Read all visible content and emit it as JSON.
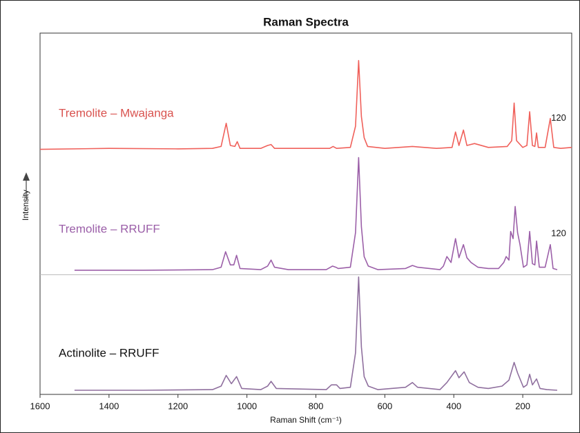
{
  "chart_data": [
    {
      "type": "line",
      "title": "Raman Spectra",
      "xlim": [
        1600,
        58
      ],
      "ylim": [
        0,
        100
      ],
      "x": [
        1600,
        1400,
        1200,
        1100,
        1075,
        1060,
        1048,
        1035,
        1028,
        1020,
        960,
        940,
        930,
        920,
        760,
        750,
        740,
        700,
        685,
        676,
        668,
        660,
        650,
        600,
        520,
        450,
        405,
        395,
        385,
        372,
        362,
        340,
        300,
        245,
        232,
        225,
        218,
        200,
        188,
        180,
        172,
        165,
        160,
        155,
        135,
        120,
        110,
        90,
        58
      ],
      "series": [
        {
          "name": "Tremolite – Mwajanga",
          "color": "#f0605a",
          "label_color": "#d9534f",
          "values": [
            6,
            7,
            6.5,
            7,
            9,
            33,
            10,
            9,
            14,
            7,
            7,
            10,
            11,
            7,
            7,
            9,
            7,
            8,
            30,
            98,
            40,
            18,
            9,
            7,
            9,
            7,
            8,
            24,
            10,
            26,
            10,
            12,
            8,
            9,
            15,
            54,
            15,
            8,
            10,
            45,
            10,
            9,
            23,
            8,
            8,
            38,
            8,
            7,
            8
          ]
        }
      ],
      "annotations": [
        {
          "text": "120",
          "x": 120
        }
      ]
    },
    {
      "type": "line",
      "ylabel": "Intensity",
      "xlim": [
        1600,
        58
      ],
      "ylim": [
        0,
        100
      ],
      "x": [
        1500,
        1300,
        1100,
        1075,
        1062,
        1048,
        1038,
        1030,
        1020,
        960,
        940,
        930,
        920,
        880,
        770,
        752,
        742,
        735,
        700,
        685,
        676,
        668,
        660,
        648,
        620,
        540,
        520,
        505,
        440,
        430,
        420,
        408,
        395,
        385,
        372,
        362,
        350,
        330,
        300,
        270,
        255,
        248,
        240,
        235,
        228,
        222,
        215,
        208,
        198,
        188,
        180,
        172,
        165,
        160,
        152,
        135,
        120,
        112,
        100
      ],
      "series": [
        {
          "name": "Tremolite – RRUFF",
          "color": "#9b5fa8",
          "label_color": "#9b5fa8",
          "values": [
            3.5,
            3.5,
            4,
            6,
            19,
            8,
            8,
            16,
            5,
            4,
            7,
            12,
            6,
            4,
            4,
            7,
            6,
            5,
            6,
            35,
            98,
            40,
            15,
            7,
            4,
            5,
            7.5,
            6,
            4,
            7,
            15,
            10,
            30,
            14,
            25,
            14,
            10,
            6,
            5,
            5,
            10,
            15,
            12,
            36,
            30,
            57,
            35,
            25,
            6,
            8,
            36,
            9,
            8,
            28,
            6,
            6,
            25,
            5,
            4
          ]
        }
      ],
      "annotations": [
        {
          "text": "120",
          "x": 120
        }
      ]
    },
    {
      "type": "line",
      "xlabel": "Raman Shift (cm⁻¹)",
      "xlim": [
        1600,
        58
      ],
      "ylim": [
        0,
        100
      ],
      "xticks": [
        1600,
        1400,
        1200,
        1000,
        800,
        600,
        400,
        200
      ],
      "x": [
        1500,
        1300,
        1100,
        1075,
        1060,
        1045,
        1030,
        1015,
        960,
        940,
        930,
        915,
        770,
        755,
        740,
        730,
        700,
        685,
        676,
        668,
        660,
        648,
        620,
        540,
        520,
        505,
        440,
        420,
        395,
        385,
        370,
        355,
        330,
        300,
        260,
        240,
        225,
        215,
        198,
        188,
        180,
        172,
        160,
        150,
        130,
        100
      ],
      "series": [
        {
          "name": "Actinolite – RRUFF",
          "color": "#8f6f9e",
          "label_color": "#111111",
          "values": [
            3.5,
            3.5,
            4,
            7,
            16,
            9,
            15,
            5,
            4,
            7,
            11,
            5,
            4,
            8,
            8,
            5,
            6,
            35,
            99,
            40,
            15,
            7,
            4,
            6,
            10,
            6,
            4,
            10,
            20,
            14,
            19,
            10,
            6,
            5,
            7,
            12,
            27,
            18,
            6,
            8,
            17,
            8,
            13,
            5,
            4,
            3.5
          ]
        }
      ]
    }
  ]
}
